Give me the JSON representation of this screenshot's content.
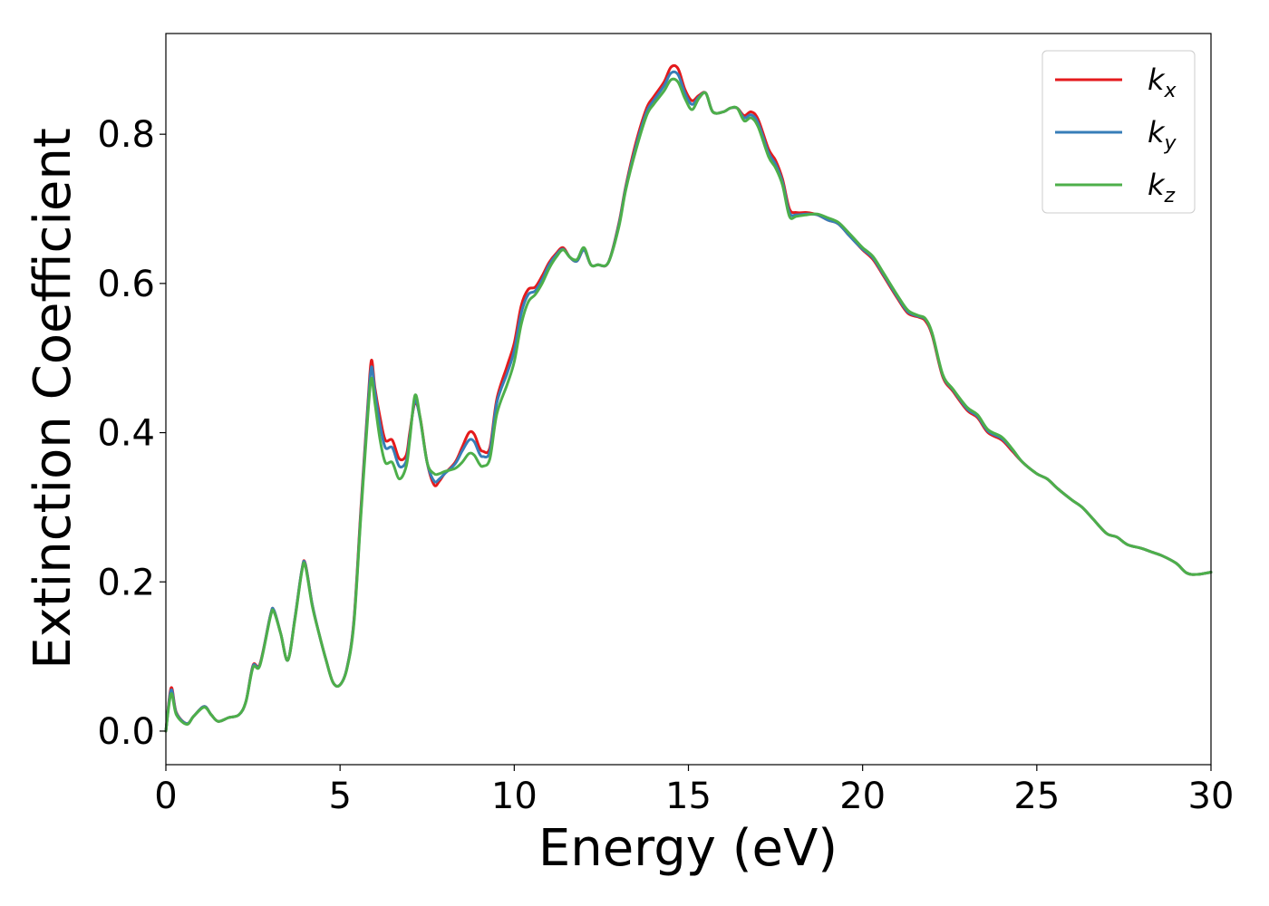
{
  "chart_data": {
    "type": "line",
    "xlabel": "Energy (eV)",
    "ylabel": "Extinction Coefficient",
    "xlim": [
      0,
      30
    ],
    "ylim": [
      -0.045,
      0.935
    ],
    "xticks": [
      0,
      5,
      10,
      15,
      20,
      25,
      30
    ],
    "yticks": [
      0.0,
      0.2,
      0.4,
      0.6,
      0.8
    ],
    "xtick_labels": [
      "0",
      "5",
      "10",
      "15",
      "20",
      "25",
      "30"
    ],
    "ytick_labels": [
      "0.0",
      "0.2",
      "0.4",
      "0.6",
      "0.8"
    ],
    "grid": false,
    "legend_position": "top-right",
    "series": [
      {
        "name": "k_x",
        "label_base": "k",
        "label_sub": "x",
        "color": "#e41a1c",
        "x": [
          0,
          0.15,
          0.3,
          0.6,
          0.8,
          1.1,
          1.3,
          1.5,
          1.8,
          2.1,
          2.3,
          2.5,
          2.7,
          3.0,
          3.1,
          3.3,
          3.5,
          3.7,
          3.9,
          4.0,
          4.2,
          4.4,
          4.6,
          4.8,
          5.0,
          5.2,
          5.4,
          5.6,
          5.8,
          5.9,
          6.0,
          6.15,
          6.3,
          6.5,
          6.7,
          6.9,
          7.0,
          7.15,
          7.3,
          7.5,
          7.7,
          7.85,
          8.0,
          8.3,
          8.5,
          8.7,
          8.85,
          9.0,
          9.1,
          9.3,
          9.5,
          9.8,
          10.0,
          10.2,
          10.4,
          10.6,
          10.8,
          11.0,
          11.2,
          11.4,
          11.6,
          11.8,
          12.0,
          12.2,
          12.4,
          12.7,
          13.0,
          13.2,
          13.5,
          13.8,
          14.0,
          14.3,
          14.5,
          14.7,
          14.9,
          15.1,
          15.3,
          15.5,
          15.7,
          16.0,
          16.2,
          16.4,
          16.6,
          16.8,
          17.0,
          17.3,
          17.5,
          17.7,
          17.9,
          18.1,
          18.4,
          18.7,
          19.0,
          19.3,
          19.6,
          19.8,
          20.0,
          20.3,
          20.6,
          21.0,
          21.3,
          21.6,
          21.8,
          22.0,
          22.3,
          22.6,
          23.0,
          23.3,
          23.6,
          24.0,
          24.3,
          24.6,
          25.0,
          25.3,
          25.6,
          26.0,
          26.3,
          26.6,
          27.0,
          27.3,
          27.6,
          28.0,
          28.3,
          28.6,
          29.0,
          29.3,
          29.6,
          30.0
        ],
        "y": [
          0.0,
          0.058,
          0.025,
          0.01,
          0.02,
          0.033,
          0.022,
          0.013,
          0.018,
          0.022,
          0.04,
          0.088,
          0.09,
          0.155,
          0.162,
          0.13,
          0.095,
          0.15,
          0.215,
          0.225,
          0.17,
          0.13,
          0.095,
          0.065,
          0.062,
          0.085,
          0.15,
          0.3,
          0.44,
          0.497,
          0.46,
          0.42,
          0.39,
          0.39,
          0.365,
          0.37,
          0.4,
          0.44,
          0.42,
          0.36,
          0.33,
          0.335,
          0.345,
          0.36,
          0.38,
          0.4,
          0.398,
          0.38,
          0.375,
          0.38,
          0.445,
          0.49,
          0.52,
          0.57,
          0.592,
          0.595,
          0.61,
          0.628,
          0.64,
          0.648,
          0.635,
          0.63,
          0.645,
          0.625,
          0.625,
          0.628,
          0.68,
          0.73,
          0.79,
          0.835,
          0.85,
          0.87,
          0.89,
          0.888,
          0.86,
          0.845,
          0.852,
          0.855,
          0.83,
          0.83,
          0.835,
          0.835,
          0.825,
          0.83,
          0.82,
          0.78,
          0.765,
          0.74,
          0.7,
          0.695,
          0.695,
          0.692,
          0.685,
          0.68,
          0.665,
          0.655,
          0.645,
          0.632,
          0.61,
          0.58,
          0.56,
          0.555,
          0.55,
          0.53,
          0.475,
          0.455,
          0.43,
          0.42,
          0.4,
          0.39,
          0.375,
          0.36,
          0.345,
          0.338,
          0.325,
          0.31,
          0.3,
          0.285,
          0.265,
          0.26,
          0.25,
          0.245,
          0.24,
          0.235,
          0.225,
          0.212,
          0.21,
          0.213
        ]
      },
      {
        "name": "k_y",
        "label_base": "k",
        "label_sub": "y",
        "color": "#377eb8",
        "x": [
          0,
          0.15,
          0.3,
          0.6,
          0.8,
          1.1,
          1.3,
          1.5,
          1.8,
          2.1,
          2.3,
          2.5,
          2.7,
          3.0,
          3.1,
          3.3,
          3.5,
          3.7,
          3.9,
          4.0,
          4.2,
          4.4,
          4.6,
          4.8,
          5.0,
          5.2,
          5.4,
          5.6,
          5.8,
          5.9,
          6.0,
          6.15,
          6.3,
          6.5,
          6.7,
          6.9,
          7.0,
          7.15,
          7.3,
          7.5,
          7.7,
          7.85,
          8.0,
          8.3,
          8.5,
          8.7,
          8.85,
          9.0,
          9.1,
          9.3,
          9.5,
          9.8,
          10.0,
          10.2,
          10.4,
          10.6,
          10.8,
          11.0,
          11.2,
          11.4,
          11.6,
          11.8,
          12.0,
          12.2,
          12.4,
          12.7,
          13.0,
          13.2,
          13.5,
          13.8,
          14.0,
          14.3,
          14.5,
          14.7,
          14.9,
          15.1,
          15.3,
          15.5,
          15.7,
          16.0,
          16.2,
          16.4,
          16.6,
          16.8,
          17.0,
          17.3,
          17.5,
          17.7,
          17.9,
          18.1,
          18.4,
          18.7,
          19.0,
          19.3,
          19.6,
          19.8,
          20.0,
          20.3,
          20.6,
          21.0,
          21.3,
          21.6,
          21.8,
          22.0,
          22.3,
          22.6,
          23.0,
          23.3,
          23.6,
          24.0,
          24.3,
          24.6,
          25.0,
          25.3,
          25.6,
          26.0,
          26.3,
          26.6,
          27.0,
          27.3,
          27.6,
          28.0,
          28.3,
          28.6,
          29.0,
          29.3,
          29.6,
          30.0
        ],
        "y": [
          0.0,
          0.055,
          0.024,
          0.01,
          0.02,
          0.033,
          0.022,
          0.013,
          0.018,
          0.022,
          0.04,
          0.087,
          0.089,
          0.155,
          0.162,
          0.13,
          0.095,
          0.15,
          0.215,
          0.224,
          0.17,
          0.13,
          0.095,
          0.065,
          0.062,
          0.085,
          0.148,
          0.295,
          0.435,
          0.488,
          0.455,
          0.41,
          0.38,
          0.38,
          0.355,
          0.362,
          0.395,
          0.443,
          0.418,
          0.36,
          0.335,
          0.338,
          0.345,
          0.358,
          0.375,
          0.39,
          0.388,
          0.372,
          0.368,
          0.375,
          0.44,
          0.48,
          0.51,
          0.56,
          0.585,
          0.59,
          0.605,
          0.625,
          0.638,
          0.646,
          0.635,
          0.63,
          0.645,
          0.625,
          0.625,
          0.628,
          0.678,
          0.728,
          0.785,
          0.83,
          0.845,
          0.865,
          0.882,
          0.88,
          0.855,
          0.84,
          0.85,
          0.855,
          0.83,
          0.83,
          0.835,
          0.835,
          0.822,
          0.826,
          0.815,
          0.775,
          0.76,
          0.736,
          0.695,
          0.692,
          0.693,
          0.692,
          0.685,
          0.68,
          0.665,
          0.655,
          0.646,
          0.634,
          0.612,
          0.582,
          0.562,
          0.556,
          0.552,
          0.532,
          0.477,
          0.457,
          0.432,
          0.422,
          0.402,
          0.392,
          0.377,
          0.36,
          0.345,
          0.338,
          0.325,
          0.31,
          0.3,
          0.285,
          0.265,
          0.26,
          0.25,
          0.245,
          0.24,
          0.235,
          0.225,
          0.212,
          0.21,
          0.213
        ]
      },
      {
        "name": "k_z",
        "label_base": "k",
        "label_sub": "z",
        "color": "#4daf4a",
        "x": [
          0,
          0.15,
          0.3,
          0.6,
          0.8,
          1.1,
          1.3,
          1.5,
          1.8,
          2.1,
          2.3,
          2.5,
          2.7,
          3.0,
          3.1,
          3.3,
          3.5,
          3.7,
          3.9,
          4.0,
          4.2,
          4.4,
          4.6,
          4.8,
          5.0,
          5.2,
          5.4,
          5.6,
          5.8,
          5.9,
          6.0,
          6.15,
          6.3,
          6.5,
          6.7,
          6.9,
          7.0,
          7.15,
          7.3,
          7.5,
          7.7,
          7.85,
          8.0,
          8.3,
          8.5,
          8.7,
          8.85,
          9.0,
          9.1,
          9.3,
          9.5,
          9.8,
          10.0,
          10.2,
          10.4,
          10.6,
          10.8,
          11.0,
          11.2,
          11.4,
          11.6,
          11.8,
          12.0,
          12.2,
          12.4,
          12.7,
          13.0,
          13.2,
          13.5,
          13.8,
          14.0,
          14.3,
          14.5,
          14.7,
          14.9,
          15.1,
          15.3,
          15.5,
          15.7,
          16.0,
          16.2,
          16.4,
          16.6,
          16.8,
          17.0,
          17.3,
          17.5,
          17.7,
          17.9,
          18.1,
          18.4,
          18.7,
          19.0,
          19.3,
          19.6,
          19.8,
          20.0,
          20.3,
          20.6,
          21.0,
          21.3,
          21.6,
          21.8,
          22.0,
          22.3,
          22.6,
          23.0,
          23.3,
          23.6,
          24.0,
          24.3,
          24.6,
          25.0,
          25.3,
          25.6,
          26.0,
          26.3,
          26.6,
          27.0,
          27.3,
          27.6,
          28.0,
          28.3,
          28.6,
          29.0,
          29.3,
          29.6,
          30.0
        ],
        "y": [
          0.0,
          0.05,
          0.022,
          0.009,
          0.02,
          0.032,
          0.022,
          0.013,
          0.018,
          0.022,
          0.04,
          0.085,
          0.088,
          0.153,
          0.16,
          0.13,
          0.095,
          0.148,
          0.213,
          0.222,
          0.168,
          0.13,
          0.095,
          0.065,
          0.062,
          0.084,
          0.145,
          0.29,
          0.425,
          0.473,
          0.44,
          0.39,
          0.36,
          0.36,
          0.338,
          0.355,
          0.39,
          0.45,
          0.42,
          0.36,
          0.345,
          0.345,
          0.348,
          0.352,
          0.36,
          0.372,
          0.37,
          0.358,
          0.355,
          0.365,
          0.425,
          0.465,
          0.495,
          0.545,
          0.575,
          0.585,
          0.6,
          0.62,
          0.635,
          0.645,
          0.635,
          0.632,
          0.648,
          0.625,
          0.625,
          0.628,
          0.675,
          0.725,
          0.78,
          0.825,
          0.84,
          0.858,
          0.873,
          0.87,
          0.848,
          0.833,
          0.848,
          0.855,
          0.83,
          0.83,
          0.835,
          0.835,
          0.818,
          0.822,
          0.81,
          0.77,
          0.755,
          0.732,
          0.69,
          0.69,
          0.692,
          0.693,
          0.688,
          0.682,
          0.668,
          0.658,
          0.648,
          0.636,
          0.614,
          0.584,
          0.564,
          0.557,
          0.553,
          0.533,
          0.478,
          0.458,
          0.434,
          0.424,
          0.404,
          0.394,
          0.378,
          0.36,
          0.345,
          0.338,
          0.325,
          0.31,
          0.3,
          0.285,
          0.265,
          0.26,
          0.25,
          0.245,
          0.24,
          0.235,
          0.225,
          0.212,
          0.21,
          0.213
        ]
      }
    ]
  }
}
